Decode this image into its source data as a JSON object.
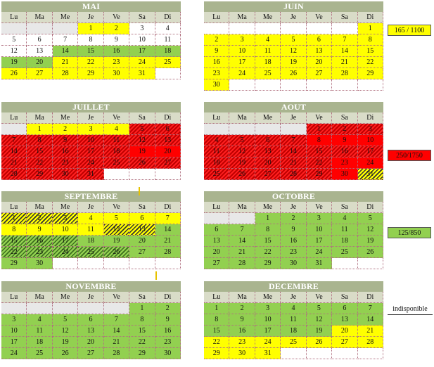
{
  "day_headers": [
    "Lu",
    "Ma",
    "Me",
    "Je",
    "Ve",
    "Sa",
    "Di"
  ],
  "legend": [
    {
      "label": "165 / 1100",
      "color": "#ffff00"
    },
    {
      "label": "250/1750",
      "color": "#ff0000"
    },
    {
      "label": "125/850",
      "color": "#92d050"
    },
    {
      "label": "indisponible",
      "color": "#ffffff"
    }
  ],
  "colors": {
    "yellow": "#ffff00",
    "green": "#92d050",
    "red": "#ff0000",
    "header": "#a9b48f"
  },
  "months": [
    {
      "name": "MAI",
      "cells": [
        [
          "",
          "x"
        ],
        [
          "",
          "x"
        ],
        [
          "",
          "x"
        ],
        [
          "1",
          "y"
        ],
        [
          "2",
          "y"
        ],
        [
          "3",
          "e"
        ],
        [
          "4",
          "e"
        ],
        [
          "5",
          "e"
        ],
        [
          "6",
          "e"
        ],
        [
          "7",
          "e"
        ],
        [
          "8",
          "e"
        ],
        [
          "9",
          "e"
        ],
        [
          "10",
          "e"
        ],
        [
          "11",
          "e"
        ],
        [
          "12",
          "e"
        ],
        [
          "13",
          "e"
        ],
        [
          "14",
          "g"
        ],
        [
          "15",
          "g"
        ],
        [
          "16",
          "g"
        ],
        [
          "17",
          "g"
        ],
        [
          "18",
          "g"
        ],
        [
          "19",
          "g"
        ],
        [
          "20",
          "g"
        ],
        [
          "21",
          "y"
        ],
        [
          "22",
          "y"
        ],
        [
          "23",
          "y"
        ],
        [
          "24",
          "y"
        ],
        [
          "25",
          "y"
        ],
        [
          "26",
          "y"
        ],
        [
          "27",
          "y"
        ],
        [
          "28",
          "y"
        ],
        [
          "29",
          "y"
        ],
        [
          "30",
          "y"
        ],
        [
          "31",
          "y"
        ],
        [
          "",
          "e"
        ]
      ]
    },
    {
      "name": "JUIN",
      "cells": [
        [
          "",
          "e"
        ],
        [
          "",
          "e"
        ],
        [
          "",
          "e"
        ],
        [
          "",
          "e"
        ],
        [
          "",
          "e"
        ],
        [
          "",
          "e"
        ],
        [
          "1",
          "y"
        ],
        [
          "2",
          "y"
        ],
        [
          "3",
          "y"
        ],
        [
          "4",
          "y"
        ],
        [
          "5",
          "y"
        ],
        [
          "6",
          "y"
        ],
        [
          "7",
          "y"
        ],
        [
          "8",
          "y"
        ],
        [
          "9",
          "y"
        ],
        [
          "10",
          "y"
        ],
        [
          "11",
          "y"
        ],
        [
          "12",
          "y"
        ],
        [
          "13",
          "y"
        ],
        [
          "14",
          "y"
        ],
        [
          "15",
          "y"
        ],
        [
          "16",
          "y"
        ],
        [
          "17",
          "y"
        ],
        [
          "18",
          "y"
        ],
        [
          "19",
          "y"
        ],
        [
          "20",
          "y"
        ],
        [
          "21",
          "y"
        ],
        [
          "22",
          "y"
        ],
        [
          "23",
          "y"
        ],
        [
          "24",
          "y"
        ],
        [
          "25",
          "y"
        ],
        [
          "26",
          "y"
        ],
        [
          "27",
          "y"
        ],
        [
          "28",
          "y"
        ],
        [
          "29",
          "y"
        ],
        [
          "30",
          "y"
        ],
        [
          "",
          "e"
        ],
        [
          "",
          "e"
        ],
        [
          "",
          "e"
        ],
        [
          "",
          "e"
        ],
        [
          "",
          "e"
        ],
        [
          "",
          "e"
        ]
      ]
    },
    {
      "name": "JUILLET",
      "cells": [
        [
          "",
          "x"
        ],
        [
          "1",
          "y"
        ],
        [
          "2",
          "y"
        ],
        [
          "3",
          "y"
        ],
        [
          "4",
          "y"
        ],
        [
          "5",
          "rh"
        ],
        [
          "6",
          "rh"
        ],
        [
          "7",
          "rh"
        ],
        [
          "8",
          "rh"
        ],
        [
          "9",
          "rh"
        ],
        [
          "10",
          "rh"
        ],
        [
          "11",
          "rh"
        ],
        [
          "12",
          "rh"
        ],
        [
          "13",
          "rh"
        ],
        [
          "14",
          "rh"
        ],
        [
          "15",
          "rh"
        ],
        [
          "16",
          "rh"
        ],
        [
          "17",
          "rh"
        ],
        [
          "18",
          "rh"
        ],
        [
          "19",
          "r"
        ],
        [
          "20",
          "r"
        ],
        [
          "21",
          "rh"
        ],
        [
          "22",
          "rh"
        ],
        [
          "23",
          "rh"
        ],
        [
          "24",
          "rh"
        ],
        [
          "25",
          "rh"
        ],
        [
          "26",
          "rh"
        ],
        [
          "27",
          "rh"
        ],
        [
          "28",
          "rh"
        ],
        [
          "29",
          "rh"
        ],
        [
          "30",
          "rh"
        ],
        [
          "31",
          "rh"
        ],
        [
          "",
          "e"
        ],
        [
          "",
          "e"
        ],
        [
          "",
          "e"
        ]
      ]
    },
    {
      "name": "AOUT",
      "cells": [
        [
          "",
          "x"
        ],
        [
          "",
          "x"
        ],
        [
          "",
          "x"
        ],
        [
          "",
          "x"
        ],
        [
          "1",
          "rh"
        ],
        [
          "2",
          "rh"
        ],
        [
          "3",
          "rh"
        ],
        [
          "4",
          "rh"
        ],
        [
          "5",
          "rh"
        ],
        [
          "6",
          "rh"
        ],
        [
          "7",
          "rh"
        ],
        [
          "8",
          "r"
        ],
        [
          "9",
          "r"
        ],
        [
          "10",
          "r"
        ],
        [
          "11",
          "rh"
        ],
        [
          "12",
          "rh"
        ],
        [
          "13",
          "rh"
        ],
        [
          "14",
          "rh"
        ],
        [
          "15",
          "rh"
        ],
        [
          "16",
          "rh"
        ],
        [
          "17",
          "rh"
        ],
        [
          "18",
          "rh"
        ],
        [
          "19",
          "rh"
        ],
        [
          "20",
          "rh"
        ],
        [
          "21",
          "rh"
        ],
        [
          "22",
          "rh"
        ],
        [
          "23",
          "r"
        ],
        [
          "24",
          "r"
        ],
        [
          "25",
          "rh"
        ],
        [
          "26",
          "rh"
        ],
        [
          "27",
          "rh"
        ],
        [
          "28",
          "rh"
        ],
        [
          "29",
          "rh"
        ],
        [
          "30",
          "r"
        ],
        [
          "31",
          "yh"
        ]
      ]
    },
    {
      "name": "SEPTEMBRE",
      "cells": [
        [
          "1",
          "yh"
        ],
        [
          "2",
          "yh"
        ],
        [
          "3",
          "yh"
        ],
        [
          "4",
          "y"
        ],
        [
          "5",
          "y"
        ],
        [
          "6",
          "y"
        ],
        [
          "7",
          "y"
        ],
        [
          "8",
          "y"
        ],
        [
          "9",
          "y"
        ],
        [
          "10",
          "y"
        ],
        [
          "11",
          "y"
        ],
        [
          "12",
          "yh"
        ],
        [
          "13",
          "yh"
        ],
        [
          "14",
          "g"
        ],
        [
          "15",
          "gh"
        ],
        [
          "16",
          "gh"
        ],
        [
          "17",
          "gh"
        ],
        [
          "18",
          "g"
        ],
        [
          "19",
          "g"
        ],
        [
          "20",
          "g"
        ],
        [
          "21",
          "g"
        ],
        [
          "22",
          "gh"
        ],
        [
          "23",
          "gh"
        ],
        [
          "24",
          "gh"
        ],
        [
          "25",
          "gh"
        ],
        [
          "26",
          "gh"
        ],
        [
          "27",
          "g"
        ],
        [
          "28",
          "g"
        ],
        [
          "29",
          "g"
        ],
        [
          "30",
          "g"
        ],
        [
          "",
          "e"
        ],
        [
          "",
          "e"
        ],
        [
          "",
          "e"
        ],
        [
          "",
          "e"
        ],
        [
          "",
          "e"
        ]
      ]
    },
    {
      "name": "OCTOBRE",
      "cells": [
        [
          "",
          "x"
        ],
        [
          "",
          "x"
        ],
        [
          "1",
          "g"
        ],
        [
          "2",
          "g"
        ],
        [
          "3",
          "g"
        ],
        [
          "4",
          "g"
        ],
        [
          "5",
          "g"
        ],
        [
          "6",
          "g"
        ],
        [
          "7",
          "g"
        ],
        [
          "8",
          "g"
        ],
        [
          "9",
          "g"
        ],
        [
          "10",
          "g"
        ],
        [
          "11",
          "g"
        ],
        [
          "12",
          "g"
        ],
        [
          "13",
          "g"
        ],
        [
          "14",
          "g"
        ],
        [
          "15",
          "g"
        ],
        [
          "16",
          "g"
        ],
        [
          "17",
          "g"
        ],
        [
          "18",
          "g"
        ],
        [
          "19",
          "g"
        ],
        [
          "20",
          "g"
        ],
        [
          "21",
          "g"
        ],
        [
          "22",
          "g"
        ],
        [
          "23",
          "g"
        ],
        [
          "24",
          "g"
        ],
        [
          "25",
          "g"
        ],
        [
          "26",
          "g"
        ],
        [
          "27",
          "g"
        ],
        [
          "28",
          "g"
        ],
        [
          "29",
          "g"
        ],
        [
          "30",
          "g"
        ],
        [
          "31",
          "g"
        ],
        [
          "",
          "e"
        ],
        [
          "",
          "e"
        ]
      ]
    },
    {
      "name": "NOVEMBRE",
      "cells": [
        [
          "",
          "x"
        ],
        [
          "",
          "x"
        ],
        [
          "",
          "x"
        ],
        [
          "",
          "x"
        ],
        [
          "",
          "x"
        ],
        [
          "1",
          "g"
        ],
        [
          "2",
          "g"
        ],
        [
          "3",
          "g"
        ],
        [
          "4",
          "g"
        ],
        [
          "5",
          "g"
        ],
        [
          "6",
          "g"
        ],
        [
          "7",
          "g"
        ],
        [
          "8",
          "g"
        ],
        [
          "9",
          "g"
        ],
        [
          "10",
          "g"
        ],
        [
          "11",
          "g"
        ],
        [
          "12",
          "g"
        ],
        [
          "13",
          "g"
        ],
        [
          "14",
          "g"
        ],
        [
          "15",
          "g"
        ],
        [
          "16",
          "g"
        ],
        [
          "17",
          "g"
        ],
        [
          "18",
          "g"
        ],
        [
          "19",
          "g"
        ],
        [
          "20",
          "g"
        ],
        [
          "21",
          "g"
        ],
        [
          "22",
          "g"
        ],
        [
          "23",
          "g"
        ],
        [
          "24",
          "g"
        ],
        [
          "25",
          "g"
        ],
        [
          "26",
          "g"
        ],
        [
          "27",
          "g"
        ],
        [
          "28",
          "g"
        ],
        [
          "29",
          "g"
        ],
        [
          "30",
          "g"
        ]
      ]
    },
    {
      "name": "DECEMBRE",
      "cells": [
        [
          "1",
          "g"
        ],
        [
          "2",
          "g"
        ],
        [
          "3",
          "g"
        ],
        [
          "4",
          "g"
        ],
        [
          "5",
          "g"
        ],
        [
          "6",
          "g"
        ],
        [
          "7",
          "g"
        ],
        [
          "8",
          "g"
        ],
        [
          "9",
          "g"
        ],
        [
          "10",
          "g"
        ],
        [
          "11",
          "g"
        ],
        [
          "12",
          "g"
        ],
        [
          "13",
          "g"
        ],
        [
          "14",
          "g"
        ],
        [
          "15",
          "g"
        ],
        [
          "16",
          "g"
        ],
        [
          "17",
          "g"
        ],
        [
          "18",
          "g"
        ],
        [
          "19",
          "g"
        ],
        [
          "20",
          "y"
        ],
        [
          "21",
          "y"
        ],
        [
          "22",
          "y"
        ],
        [
          "23",
          "y"
        ],
        [
          "24",
          "y"
        ],
        [
          "25",
          "y"
        ],
        [
          "26",
          "y"
        ],
        [
          "27",
          "y"
        ],
        [
          "28",
          "y"
        ],
        [
          "29",
          "y"
        ],
        [
          "30",
          "y"
        ],
        [
          "31",
          "y"
        ],
        [
          "",
          "e"
        ],
        [
          "",
          "e"
        ],
        [
          "",
          "e"
        ],
        [
          "",
          "e"
        ]
      ]
    }
  ]
}
